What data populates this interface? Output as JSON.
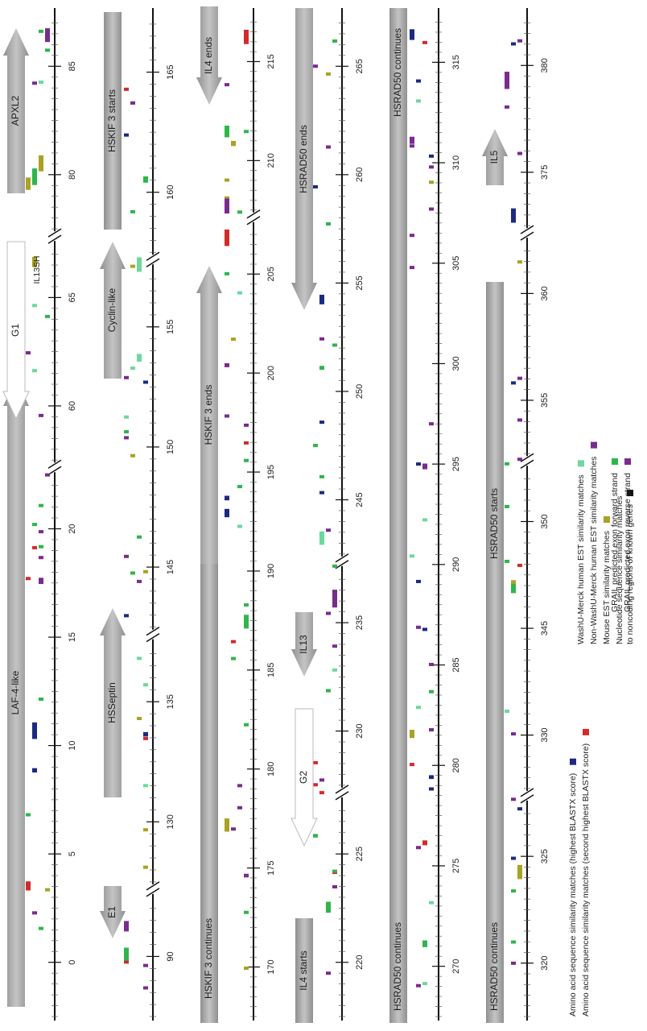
{
  "tracks": [
    {
      "ticks": [
        [
          "0",
          "5",
          "10",
          "15",
          "20"
        ],
        [
          "60",
          "65"
        ],
        [
          "80",
          "85"
        ]
      ],
      "genes": [
        {
          "label": "LAF-4-like"
        },
        {
          "label": "G1"
        },
        {
          "label": "IL13SH"
        },
        {
          "label": "APXL2"
        }
      ]
    },
    {
      "ticks": [
        [
          "90"
        ],
        [
          "130",
          "135"
        ],
        [
          "145",
          "150",
          "155"
        ],
        [
          "160",
          "165"
        ]
      ],
      "genes": [
        {
          "label": "E1"
        },
        {
          "label": "HSSeptin"
        },
        {
          "label": "Cyclin-like"
        },
        {
          "label": "HSKIF 3  starts"
        }
      ]
    },
    {
      "ticks": [
        [
          "170",
          "175",
          "180",
          "185",
          "190",
          "195",
          "200",
          "205"
        ],
        [
          "210",
          "215"
        ]
      ],
      "genes": [
        {
          "label": "HSKIF 3  continues"
        },
        {
          "label": "HSKIF 3  ends"
        },
        {
          "label": "IL4 ends"
        }
      ]
    },
    {
      "ticks": [
        [
          "220",
          "225"
        ],
        [
          "230",
          "235"
        ],
        [
          "245",
          "250",
          "255",
          "260",
          "265"
        ]
      ],
      "genes": [
        {
          "label": "IL4 starts"
        },
        {
          "label": "G2"
        },
        {
          "label": "IL13"
        },
        {
          "label": "HSRAD50  ends"
        }
      ]
    },
    {
      "ticks": [
        [
          "270",
          "275",
          "280",
          "285",
          "290",
          "295",
          "300",
          "305",
          "310",
          "315"
        ]
      ],
      "genes": [
        {
          "label": "HSRAD50  continues"
        },
        {
          "label": "HSRAD50  continues"
        }
      ]
    },
    {
      "ticks": [
        [
          "320",
          "325"
        ],
        [
          "330",
          "345",
          "350"
        ],
        [
          "355",
          "360"
        ],
        [
          "375",
          "380"
        ]
      ],
      "genes": [
        {
          "label": "HSRAD50 continues"
        },
        {
          "label": "HSRAD50  starts"
        },
        {
          "label": "IL5"
        }
      ]
    }
  ],
  "legend": {
    "columns": [
      [
        {
          "lines": [
            "Amino acid sequence similarity matches (highest BLASTX score)"
          ],
          "color": "#1c2a80"
        },
        {
          "lines": [
            "Amino acid sequence similarity matches (second highest BLASTX score)"
          ],
          "color": "#d42a2a"
        }
      ],
      [
        {
          "lines": [
            "WashU-Merck human EST similarity matches"
          ],
          "color": "#6fd7a0"
        },
        {
          "lines": [
            "Non-WashU-Merck human EST similarity matches"
          ],
          "color": "#7a2b8e"
        },
        {
          "lines": [
            "Mouse EST similarity matches"
          ],
          "color": "#a8a226"
        },
        {
          "lines": [
            "Nucleotide sequence similarity matches",
            "to noncoding regions of known genes"
          ],
          "color": "#111111"
        }
      ],
      [
        {
          "lines": [
            "GRAIL predicted exon forward strand"
          ],
          "color": "#2fb54c"
        },
        {
          "lines": [
            "GRAIL predicted exon reverse strand"
          ],
          "color": "#7a2b8e"
        }
      ]
    ]
  }
}
